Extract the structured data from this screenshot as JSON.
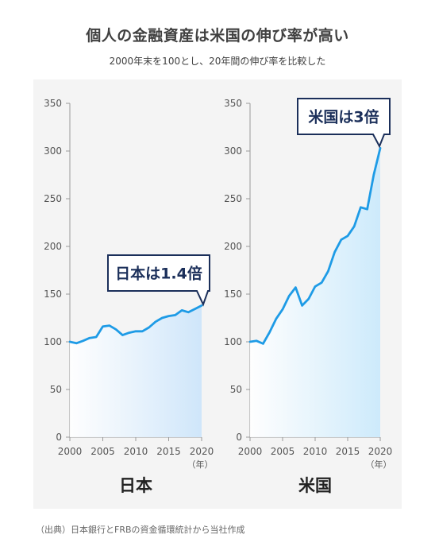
{
  "title": "個人の金融資産は米国の伸び率が高い",
  "subtitle": "2000年末を100とし、20年間の伸び率を比較した",
  "source": "（出典）日本銀行とFRBの資金循環統計から当社作成",
  "chart_data": [
    {
      "type": "area",
      "name": "日本",
      "callout": "日本は1.4倍",
      "x_unit": "（年）",
      "xlim": [
        2000,
        2020
      ],
      "ylim": [
        0,
        350
      ],
      "x_ticks": [
        2000,
        2005,
        2010,
        2015,
        2020
      ],
      "y_ticks": [
        0,
        50,
        100,
        150,
        200,
        250,
        300,
        350
      ],
      "x": [
        2000,
        2001,
        2002,
        2003,
        2004,
        2005,
        2006,
        2007,
        2008,
        2009,
        2010,
        2011,
        2012,
        2013,
        2014,
        2015,
        2016,
        2017,
        2018,
        2019,
        2020
      ],
      "values": [
        100,
        98.5,
        101,
        104,
        105,
        116,
        117,
        113,
        107,
        109.5,
        111,
        111,
        115,
        121,
        125,
        127,
        128,
        133,
        131,
        134.5,
        138
      ],
      "line_color": "#1e9be6",
      "fill_color": "#cfe6fa"
    },
    {
      "type": "area",
      "name": "米国",
      "callout": "米国は3倍",
      "x_unit": "（年）",
      "xlim": [
        2000,
        2020
      ],
      "ylim": [
        0,
        350
      ],
      "x_ticks": [
        2000,
        2005,
        2010,
        2015,
        2020
      ],
      "y_ticks": [
        0,
        50,
        100,
        150,
        200,
        250,
        300,
        350
      ],
      "x": [
        2000,
        2001,
        2002,
        2003,
        2004,
        2005,
        2006,
        2007,
        2008,
        2009,
        2010,
        2011,
        2012,
        2013,
        2014,
        2015,
        2016,
        2017,
        2018,
        2019,
        2020
      ],
      "values": [
        100,
        101,
        98,
        110,
        124,
        134,
        148,
        157,
        138,
        145,
        158,
        162,
        174,
        194,
        207,
        211,
        221,
        241,
        239,
        275,
        303
      ],
      "line_color": "#1e9be6",
      "fill_color": "#cdeafb"
    }
  ]
}
